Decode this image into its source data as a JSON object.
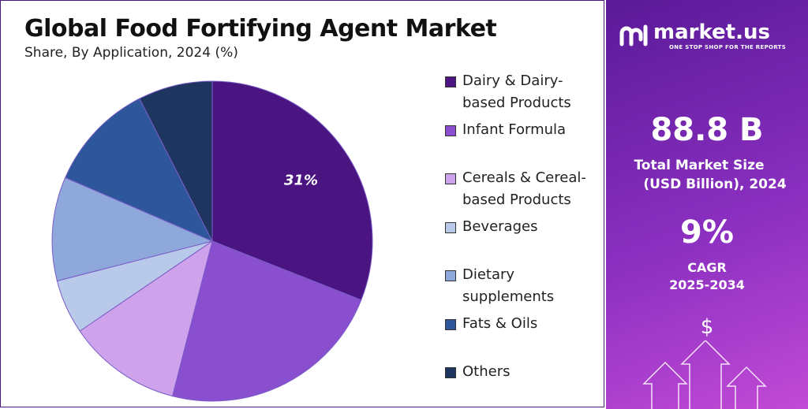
{
  "chart_data": {
    "type": "pie",
    "title": "Global Food Fortifying Agent Market",
    "subtitle": "Share, By Application, 2024 (%)",
    "categories": [
      "Dairy & Dairy-based Products",
      "Infant Formula",
      "Cereals & Cereal-based Products",
      "Beverages",
      "Dietary supplements",
      "Fats & Oils",
      "Others"
    ],
    "values": [
      31,
      23,
      11.5,
      5.5,
      10.5,
      11,
      7.5
    ],
    "value_labels": [
      "31%",
      null,
      null,
      null,
      null,
      null,
      null
    ],
    "colors": [
      "#4a1580",
      "#8a4fcf",
      "#cfa3ec",
      "#b9c9e9",
      "#8fa8dc",
      "#2d579a",
      "#1e3560"
    ]
  },
  "panel": {
    "brand": "market.us",
    "tagline": "ONE STOP SHOP FOR THE REPORTS",
    "market_size": "88.8 B",
    "market_size_label_1": "Total Market Size",
    "market_size_label_2": "(USD Billion), 2024",
    "cagr": "9%",
    "cagr_label": "CAGR",
    "cagr_period": "2025-2034",
    "currency_icon": "$"
  }
}
